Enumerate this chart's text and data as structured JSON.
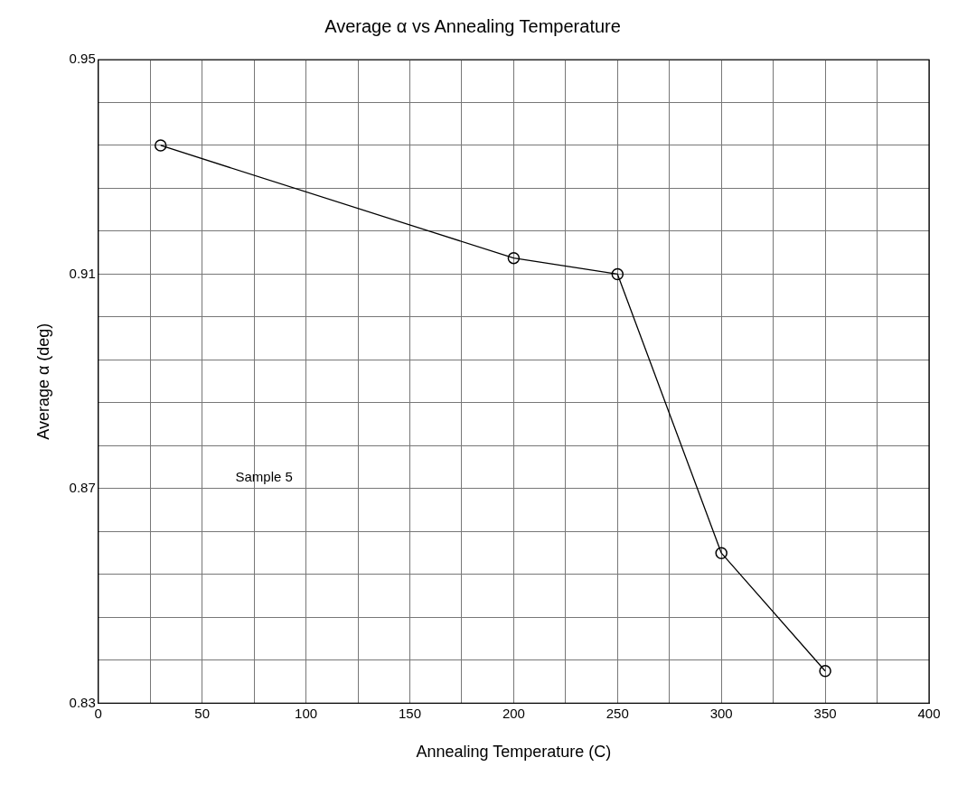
{
  "chart_data": {
    "type": "line",
    "title": "Average α vs Annealing Temperature",
    "xlabel": "Annealing Temperature (C)",
    "ylabel": "Average α (deg)",
    "x": [
      30,
      200,
      250,
      300,
      350
    ],
    "series": [
      {
        "color": "#000000",
        "values": [
          0.934,
          0.913,
          0.91,
          0.858,
          0.836
        ]
      }
    ],
    "xlim": [
      0,
      400
    ],
    "xticks": [
      0,
      {
        "value": 25,
        "label": null
      },
      50,
      {
        "value": 75,
        "label": null
      },
      100,
      {
        "value": 125,
        "label": null
      },
      150,
      {
        "value": 175,
        "label": null
      },
      200,
      {
        "value": 225,
        "label": null
      },
      250,
      {
        "value": 275,
        "label": null
      },
      300,
      {
        "value": 325,
        "label": null
      },
      350,
      {
        "value": 375,
        "label": null
      },
      400
    ],
    "ylim": [
      0.83,
      0.95
    ],
    "yticks": [
      0.83,
      {
        "value": 0.838,
        "label": null
      },
      {
        "value": 0.846,
        "label": null
      },
      {
        "value": 0.854,
        "label": null
      },
      {
        "value": 0.862,
        "label": null
      },
      0.87,
      {
        "value": 0.878,
        "label": null
      },
      {
        "value": 0.886,
        "label": null
      },
      {
        "value": 0.894,
        "label": null
      },
      {
        "value": 0.902,
        "label": null
      },
      0.91,
      {
        "value": 0.918,
        "label": null
      },
      {
        "value": 0.926,
        "label": null
      },
      {
        "value": 0.934,
        "label": null
      },
      {
        "value": 0.942,
        "label": null
      },
      0.95
    ],
    "grid": true,
    "marker": "circle",
    "line_style": "solid",
    "legend": false,
    "annotations": [
      "Sample 5"
    ]
  }
}
